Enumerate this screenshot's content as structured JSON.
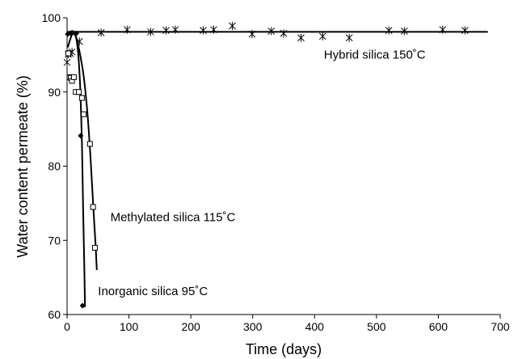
{
  "chart_data": {
    "type": "scatter",
    "title": "",
    "xlabel": "Time (days)",
    "ylabel": "Water content permeate (%)",
    "xlim": [
      0,
      700
    ],
    "ylim": [
      60,
      100
    ],
    "xticks": [
      0,
      100,
      200,
      300,
      400,
      500,
      600,
      700
    ],
    "yticks": [
      60,
      70,
      80,
      90,
      100
    ],
    "grid": false,
    "legend": "none",
    "series": [
      {
        "marker": "asterisk",
        "color": "#000000",
        "points": [
          [
            0,
            94
          ],
          [
            2,
            95.1
          ],
          [
            5,
            95.2
          ],
          [
            8,
            95.4
          ],
          [
            20,
            96.8
          ],
          [
            55,
            98
          ],
          [
            97,
            98.4
          ],
          [
            135,
            98.1
          ],
          [
            160,
            98.3
          ],
          [
            175,
            98.4
          ],
          [
            220,
            98.3
          ],
          [
            237,
            98.4
          ],
          [
            267,
            98.9
          ],
          [
            299,
            97.8
          ],
          [
            330,
            98.2
          ],
          [
            350,
            97.9
          ],
          [
            378,
            97.3
          ],
          [
            413,
            97.5
          ],
          [
            456,
            97.3
          ],
          [
            520,
            98.3
          ],
          [
            545,
            98.2
          ],
          [
            607,
            98.4
          ],
          [
            643,
            98.3
          ]
        ]
      },
      {
        "marker": "square",
        "color": "#000000",
        "points": [
          [
            2,
            95.2
          ],
          [
            4,
            92
          ],
          [
            6,
            91.9
          ],
          [
            8,
            91.5
          ],
          [
            11,
            92
          ],
          [
            14,
            90
          ],
          [
            19,
            90
          ],
          [
            24,
            89.2
          ],
          [
            27,
            87
          ],
          [
            37,
            83
          ],
          [
            42,
            74.5
          ],
          [
            45,
            69
          ]
        ]
      },
      {
        "marker": "diamond",
        "color": "#000000",
        "points": [
          [
            1,
            97.8
          ],
          [
            6,
            97.9
          ],
          [
            15,
            97.9
          ],
          [
            22,
            84.1
          ],
          [
            25,
            61.2
          ]
        ]
      }
    ],
    "fit_lines": [
      {
        "points": [
          [
            0,
            98.1
          ],
          [
            680,
            98.1
          ]
        ]
      },
      {
        "points": [
          [
            1,
            96
          ],
          [
            8,
            97.7
          ],
          [
            14,
            97.5
          ],
          [
            20,
            95.5
          ],
          [
            27,
            92
          ],
          [
            33,
            87
          ],
          [
            38,
            81
          ],
          [
            42,
            75
          ],
          [
            46,
            69.5
          ],
          [
            48,
            66
          ]
        ]
      },
      {
        "points": [
          [
            0,
            97.6
          ],
          [
            5,
            98.1
          ],
          [
            12,
            98
          ],
          [
            17,
            96
          ],
          [
            21,
            91
          ],
          [
            24,
            83
          ],
          [
            26,
            74
          ],
          [
            28,
            66
          ],
          [
            29,
            61
          ]
        ]
      }
    ],
    "annotations": [
      {
        "text": "Hybrid silica 150˚C",
        "x": 415,
        "y": 94.5
      },
      {
        "text": "Methylated silica 115˚C",
        "x": 70,
        "y": 72.6
      },
      {
        "text": "Inorganic silica 95˚C",
        "x": 50,
        "y": 62.6
      }
    ]
  }
}
